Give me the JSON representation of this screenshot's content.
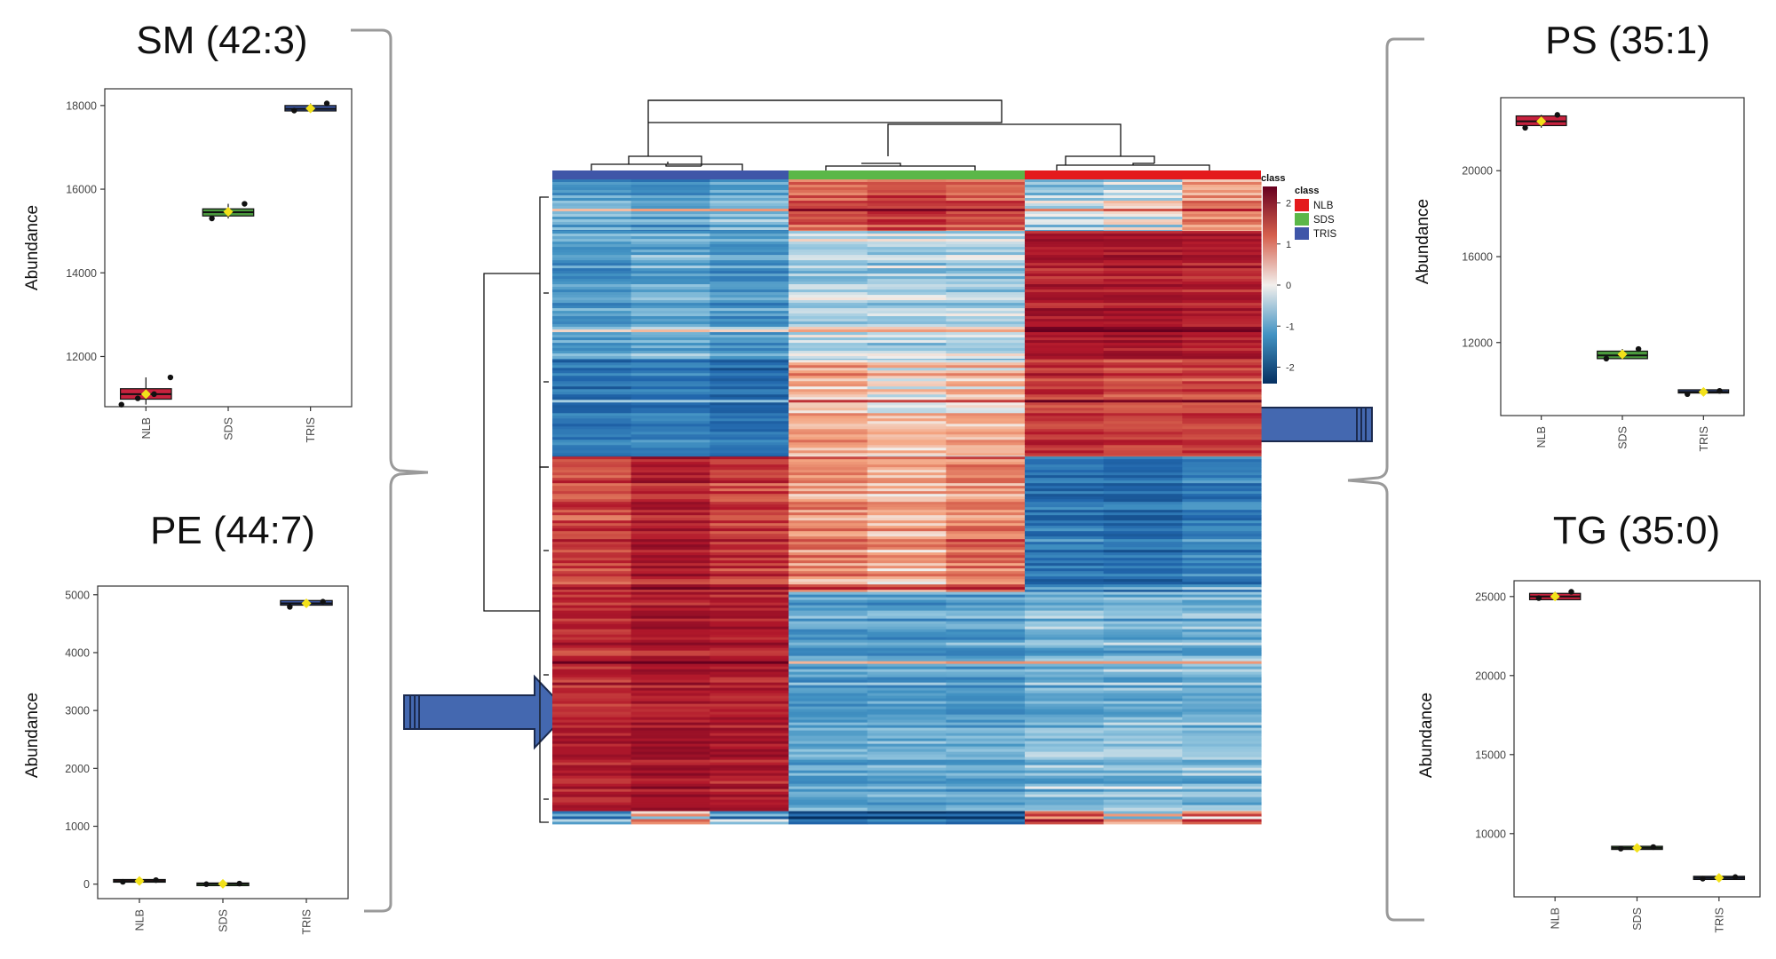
{
  "colors": {
    "NLB": "#e41a1c",
    "SDS": "#5bb748",
    "TRIS": "#3f56a8",
    "arrow": "#4468b0",
    "brace": "#9a9a9a",
    "box_fill_NLB": "#c8223e",
    "box_fill_SDS": "#4b9a3e",
    "box_fill_TRIS": "#3a55a0",
    "mean_marker": "#f2e11a"
  },
  "chart_data": [
    {
      "type": "box",
      "title": "SM (42:3)",
      "ylabel": "Abundance",
      "categories": [
        "NLB",
        "SDS",
        "TRIS"
      ],
      "yticks": [
        12000,
        14000,
        16000,
        18000
      ],
      "ylim": [
        10800,
        18400
      ],
      "values": [
        {
          "category": "NLB",
          "points": [
            10850,
            11000,
            11100,
            11500
          ],
          "q1": 10980,
          "q3": 11230,
          "mean": 11100
        },
        {
          "category": "SDS",
          "points": [
            15300,
            15450,
            15650
          ],
          "q1": 15360,
          "q3": 15530,
          "mean": 15460
        },
        {
          "category": "TRIS",
          "points": [
            17880,
            17920,
            18050
          ],
          "q1": 17870,
          "q3": 18000,
          "mean": 17930
        }
      ]
    },
    {
      "type": "box",
      "title": "PE (44:7)",
      "ylabel": "Abundance",
      "categories": [
        "NLB",
        "SDS",
        "TRIS"
      ],
      "yticks": [
        0,
        1000,
        2000,
        3000,
        4000,
        5000
      ],
      "ylim": [
        -250,
        5150
      ],
      "values": [
        {
          "category": "NLB",
          "points": [
            40,
            55,
            70
          ],
          "q1": 40,
          "q3": 80,
          "mean": 55
        },
        {
          "category": "SDS",
          "points": [
            0,
            5,
            10
          ],
          "q1": -10,
          "q3": 20,
          "mean": 5
        },
        {
          "category": "TRIS",
          "points": [
            4790,
            4850,
            4880
          ],
          "q1": 4820,
          "q3": 4900,
          "mean": 4850
        }
      ]
    },
    {
      "type": "box",
      "title": "PS (35:1)",
      "ylabel": "Abundance",
      "categories": [
        "NLB",
        "SDS",
        "TRIS"
      ],
      "yticks": [
        12000,
        16000,
        20000
      ],
      "ylim": [
        8600,
        23400
      ],
      "values": [
        {
          "category": "NLB",
          "points": [
            22000,
            22300,
            22600
          ],
          "q1": 22100,
          "q3": 22550,
          "mean": 22300
        },
        {
          "category": "SDS",
          "points": [
            11250,
            11400,
            11700
          ],
          "q1": 11250,
          "q3": 11600,
          "mean": 11450
        },
        {
          "category": "TRIS",
          "points": [
            9600,
            9700,
            9750
          ],
          "q1": 9650,
          "q3": 9800,
          "mean": 9700
        }
      ]
    },
    {
      "type": "box",
      "title": "TG (35:0)",
      "ylabel": "Abundance",
      "categories": [
        "NLB",
        "SDS",
        "TRIS"
      ],
      "yticks": [
        10000,
        15000,
        20000,
        25000
      ],
      "ylim": [
        6000,
        26000
      ],
      "values": [
        {
          "category": "NLB",
          "points": [
            24900,
            25000,
            25300
          ],
          "q1": 24800,
          "q3": 25200,
          "mean": 25000
        },
        {
          "category": "SDS",
          "points": [
            9050,
            9100,
            9150
          ],
          "q1": 9000,
          "q3": 9200,
          "mean": 9100
        },
        {
          "category": "TRIS",
          "points": [
            7150,
            7200,
            7250
          ],
          "q1": 7100,
          "q3": 7300,
          "mean": 7200
        }
      ]
    },
    {
      "type": "heatmap",
      "column_groups": [
        "TRIS",
        "SDS",
        "NLB"
      ],
      "columns_per_group": 3,
      "row_blocks": [
        {
          "fraction": 0.08,
          "levels": [
            -0.8,
            -0.9,
            -0.7,
            0.9,
            1.1,
            0.9,
            -0.4,
            -0.2,
            0.5
          ]
        },
        {
          "fraction": 0.2,
          "levels": [
            -0.9,
            -0.7,
            -0.9,
            -0.3,
            -0.3,
            -0.3,
            1.6,
            1.6,
            1.5
          ]
        },
        {
          "fraction": 0.15,
          "levels": [
            -1.3,
            -1.2,
            -1.4,
            0.4,
            0.2,
            0.3,
            1.3,
            1.1,
            1.2
          ]
        },
        {
          "fraction": 0.21,
          "levels": [
            1.1,
            1.5,
            1.2,
            0.6,
            0.4,
            0.7,
            -1.3,
            -1.4,
            -1.2
          ]
        },
        {
          "fraction": 0.34,
          "levels": [
            1.4,
            1.6,
            1.5,
            -0.8,
            -0.8,
            -0.8,
            -0.6,
            -0.6,
            -0.6
          ]
        },
        {
          "fraction": 0.02,
          "levels": [
            -0.5,
            0.8,
            -0.4,
            -1.4,
            -1.3,
            -1.3,
            1.5,
            0.4,
            1.2
          ]
        }
      ],
      "legend": {
        "title": "class",
        "entries": [
          "NLB",
          "SDS",
          "TRIS"
        ],
        "colorbar_title": "class",
        "colorbar_ticks": [
          2,
          1,
          0,
          -1,
          -2
        ]
      }
    }
  ]
}
